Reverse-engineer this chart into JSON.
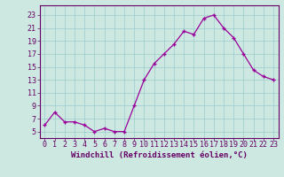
{
  "x": [
    0,
    1,
    2,
    3,
    4,
    5,
    6,
    7,
    8,
    9,
    10,
    11,
    12,
    13,
    14,
    15,
    16,
    17,
    18,
    19,
    20,
    21,
    22,
    23
  ],
  "y": [
    6,
    8,
    6.5,
    6.5,
    6,
    5,
    5.5,
    5,
    5,
    9,
    13,
    15.5,
    17,
    18.5,
    20.5,
    20,
    22.5,
    23,
    21,
    19.5,
    17,
    14.5,
    13.5,
    13
  ],
  "line_color": "#990099",
  "marker": "+",
  "marker_size": 3,
  "background_color": "#cce8e0",
  "grid_color": "#99cccc",
  "xlabel": "Windchill (Refroidissement éolien,°C)",
  "xlabel_fontsize": 6.5,
  "ylabel_ticks": [
    5,
    7,
    9,
    11,
    13,
    15,
    17,
    19,
    21,
    23
  ],
  "xtick_labels": [
    "0",
    "1",
    "2",
    "3",
    "4",
    "5",
    "6",
    "7",
    "8",
    "9",
    "10",
    "11",
    "12",
    "13",
    "14",
    "15",
    "16",
    "17",
    "18",
    "19",
    "20",
    "21",
    "22",
    "23"
  ],
  "ylim": [
    4.0,
    24.5
  ],
  "xlim": [
    -0.5,
    23.5
  ],
  "tick_fontsize": 6,
  "axis_label_color": "#660066",
  "tick_color": "#660066",
  "spine_color": "#660066"
}
